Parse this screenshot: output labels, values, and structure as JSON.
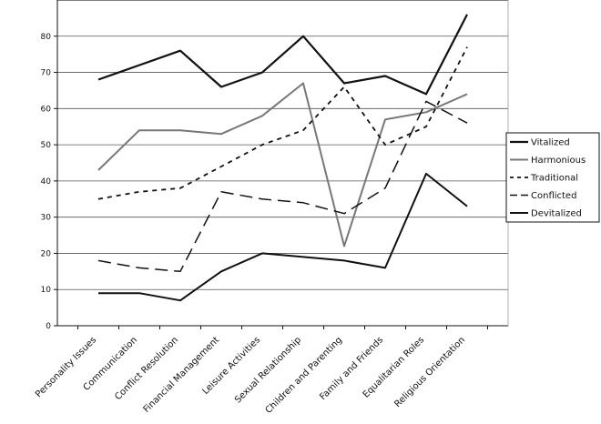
{
  "chart_data": {
    "type": "line",
    "title": "",
    "xlabel": "",
    "ylabel": "",
    "ylim": [
      0,
      90
    ],
    "yticks": [
      0,
      10,
      20,
      30,
      40,
      50,
      60,
      70,
      80
    ],
    "grid": true,
    "legend_position": "right",
    "categories": [
      "Personality Issues",
      "Communication",
      "Conflict Resolution",
      "Financial Management",
      "Leisure Activities",
      "Sexual Relationship",
      "Children and Parenting",
      "Family and Friends",
      "Equalitarian Roles",
      "Religious Orientation"
    ],
    "series": [
      {
        "name": "Vitalized",
        "color": "#111111",
        "style": "solid-thick",
        "values": [
          68,
          72,
          76,
          66,
          70,
          80,
          67,
          69,
          64,
          86
        ]
      },
      {
        "name": "Harmonious",
        "color": "#777777",
        "style": "solid-gray",
        "values": [
          43,
          54,
          54,
          53,
          58,
          67,
          22,
          57,
          59,
          64
        ]
      },
      {
        "name": "Traditional",
        "color": "#111111",
        "style": "dotted",
        "values": [
          35,
          37,
          38,
          44,
          50,
          54,
          66,
          50,
          55,
          77
        ]
      },
      {
        "name": "Conflicted",
        "color": "#111111",
        "style": "dashed",
        "values": [
          18,
          16,
          15,
          37,
          35,
          34,
          31,
          38,
          62,
          56
        ]
      },
      {
        "name": "Devitalized",
        "color": "#111111",
        "style": "solid",
        "values": [
          9,
          9,
          7,
          15,
          20,
          19,
          18,
          16,
          42,
          33
        ]
      }
    ]
  }
}
